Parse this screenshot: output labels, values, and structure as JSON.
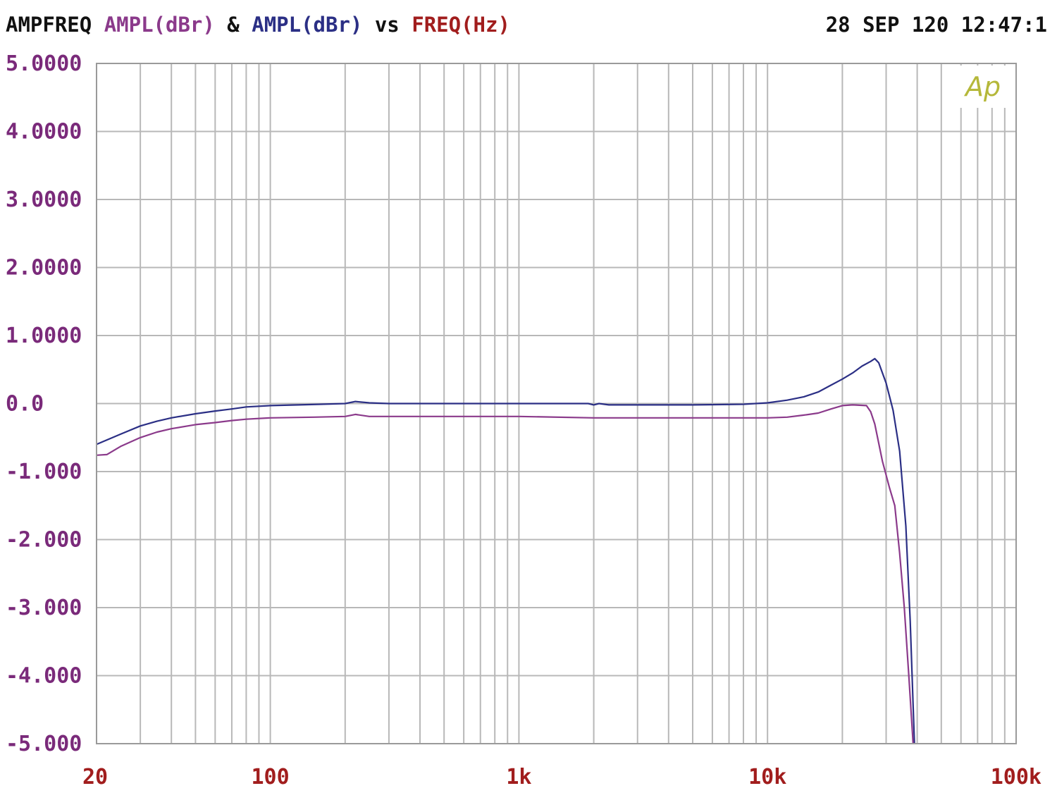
{
  "header": {
    "prefix": "AMPFREQ",
    "series1_label": "AMPL(dBr)",
    "amp": "&",
    "series2_label": "AMPL(dBr)",
    "vs": "vs",
    "x_label": "FREQ(Hz)",
    "timestamp": "28 SEP 120 12:47:1"
  },
  "logo": {
    "text": "Ap",
    "color": "#b5b83a"
  },
  "colors": {
    "prefix": "#111111",
    "series1": "#8b3a8b",
    "series2": "#2b2f85",
    "x_label": "#a11d1d",
    "y_ticks": "#7a2a7a",
    "x_ticks": "#a11d1d",
    "grid": "#b8b8b8",
    "plot_border": "#9a9a9a"
  },
  "chart_data": {
    "type": "line",
    "title": "AMPFREQ AMPL(dBr) & AMPL(dBr) vs FREQ(Hz)",
    "xlabel": "FREQ(Hz)",
    "ylabel": "AMPL(dBr)",
    "x_scale": "log",
    "xlim": [
      20,
      100000
    ],
    "ylim": [
      -5,
      5
    ],
    "grid": true,
    "y_ticks": [
      {
        "value": 5,
        "label": "5.0000"
      },
      {
        "value": 4,
        "label": "4.0000"
      },
      {
        "value": 3,
        "label": "3.0000"
      },
      {
        "value": 2,
        "label": "2.0000"
      },
      {
        "value": 1,
        "label": "1.0000"
      },
      {
        "value": 0,
        "label": "0.0"
      },
      {
        "value": -1,
        "label": "-1.000"
      },
      {
        "value": -2,
        "label": "-2.000"
      },
      {
        "value": -3,
        "label": "-3.000"
      },
      {
        "value": -4,
        "label": "-4.000"
      },
      {
        "value": -5,
        "label": "-5.000"
      }
    ],
    "x_ticks": [
      {
        "value": 20,
        "label": "20"
      },
      {
        "value": 100,
        "label": "100"
      },
      {
        "value": 1000,
        "label": "1k"
      },
      {
        "value": 10000,
        "label": "10k"
      },
      {
        "value": 100000,
        "label": "100k"
      }
    ],
    "series": [
      {
        "color": "#2b2f85",
        "points": [
          [
            20,
            -0.6
          ],
          [
            25,
            -0.45
          ],
          [
            30,
            -0.33
          ],
          [
            35,
            -0.26
          ],
          [
            40,
            -0.21
          ],
          [
            50,
            -0.15
          ],
          [
            60,
            -0.11
          ],
          [
            70,
            -0.08
          ],
          [
            80,
            -0.05
          ],
          [
            100,
            -0.03
          ],
          [
            130,
            -0.02
          ],
          [
            160,
            -0.01
          ],
          [
            200,
            0.0
          ],
          [
            220,
            0.03
          ],
          [
            250,
            0.01
          ],
          [
            300,
            0.0
          ],
          [
            500,
            0.0
          ],
          [
            1000,
            0.0
          ],
          [
            1500,
            0.0
          ],
          [
            1900,
            0.0
          ],
          [
            2000,
            -0.02
          ],
          [
            2100,
            0.0
          ],
          [
            2300,
            -0.02
          ],
          [
            3000,
            -0.02
          ],
          [
            5000,
            -0.02
          ],
          [
            8000,
            -0.01
          ],
          [
            10000,
            0.01
          ],
          [
            12000,
            0.05
          ],
          [
            14000,
            0.1
          ],
          [
            16000,
            0.17
          ],
          [
            18000,
            0.27
          ],
          [
            20000,
            0.36
          ],
          [
            22000,
            0.45
          ],
          [
            24000,
            0.55
          ],
          [
            26000,
            0.62
          ],
          [
            27000,
            0.66
          ],
          [
            28000,
            0.6
          ],
          [
            30000,
            0.3
          ],
          [
            32000,
            -0.1
          ],
          [
            34000,
            -0.7
          ],
          [
            36000,
            -1.8
          ],
          [
            37500,
            -3.2
          ],
          [
            39000,
            -5.0
          ]
        ]
      },
      {
        "color": "#8b3a8b",
        "points": [
          [
            20,
            -0.76
          ],
          [
            22,
            -0.75
          ],
          [
            25,
            -0.63
          ],
          [
            30,
            -0.5
          ],
          [
            35,
            -0.42
          ],
          [
            40,
            -0.37
          ],
          [
            50,
            -0.31
          ],
          [
            60,
            -0.28
          ],
          [
            70,
            -0.25
          ],
          [
            80,
            -0.23
          ],
          [
            100,
            -0.21
          ],
          [
            150,
            -0.2
          ],
          [
            200,
            -0.19
          ],
          [
            220,
            -0.16
          ],
          [
            250,
            -0.19
          ],
          [
            500,
            -0.19
          ],
          [
            1000,
            -0.19
          ],
          [
            2000,
            -0.21
          ],
          [
            5000,
            -0.21
          ],
          [
            10000,
            -0.21
          ],
          [
            12000,
            -0.2
          ],
          [
            14000,
            -0.17
          ],
          [
            16000,
            -0.14
          ],
          [
            18000,
            -0.08
          ],
          [
            20000,
            -0.03
          ],
          [
            22000,
            -0.02
          ],
          [
            25000,
            -0.03
          ],
          [
            26000,
            -0.12
          ],
          [
            27000,
            -0.3
          ],
          [
            29000,
            -0.85
          ],
          [
            31000,
            -1.25
          ],
          [
            32500,
            -1.5
          ],
          [
            34000,
            -2.2
          ],
          [
            35500,
            -3.0
          ],
          [
            37000,
            -4.0
          ],
          [
            38500,
            -5.0
          ]
        ]
      }
    ]
  }
}
